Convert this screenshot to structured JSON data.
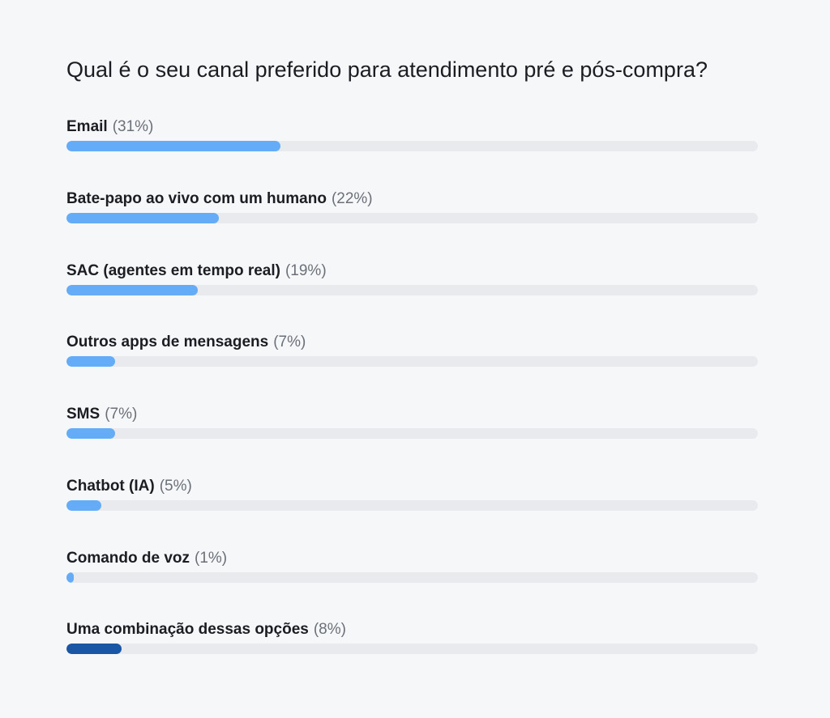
{
  "chart_data": {
    "type": "bar",
    "orientation": "horizontal",
    "title": "Qual é o seu canal preferido para atendimento pré e pós-compra?",
    "categories": [
      "Email",
      "Bate-papo ao vivo com um humano",
      "SAC (agentes em tempo real)",
      "Outros apps de mensagens",
      "SMS",
      "Chatbot (IA)",
      "Comando de voz",
      "Uma combinação dessas opções"
    ],
    "values": [
      31,
      22,
      19,
      7,
      7,
      5,
      1,
      8
    ],
    "value_labels": [
      "(31%)",
      "(22%)",
      "(19%)",
      "(7%)",
      "(7%)",
      "(5%)",
      "(1%)",
      "(8%)"
    ],
    "unit": "%",
    "xlim": [
      0,
      100
    ],
    "grid": false,
    "colors": {
      "bar": "#64acf7",
      "highlight_bar": "#1a56a6",
      "track": "#e8eaed"
    },
    "highlight_index": 7
  }
}
